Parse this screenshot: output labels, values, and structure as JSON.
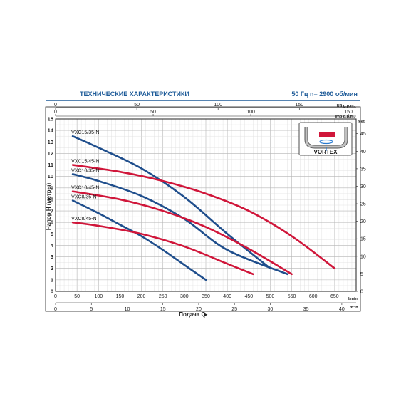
{
  "header": {
    "title": "ТЕХНИЧЕСКИЕ ХАРАКТЕРИСТИКИ",
    "spec": "50 Гц   n= 2900 об/мин"
  },
  "inset": {
    "label": "VORTEX"
  },
  "colors": {
    "title": "#1f5c99",
    "blue_series": "#1f4e8c",
    "red_series": "#d0163a",
    "grid": "#c8c8c8",
    "frame": "#222222"
  },
  "chart_data": {
    "type": "line",
    "xlabel": "Подача Q",
    "ylabel": "Напор H (метры)",
    "x_unit_bottom": "l/min",
    "x_unit_lower": "m³/h",
    "x_unit_top1": "US g.p.m.",
    "x_unit_top2": "Imp g.p.m.",
    "y_unit_right": "feet",
    "xlim": [
      0,
      700
    ],
    "ylim": [
      0,
      15
    ],
    "grid": true,
    "x_ticks_lmin": [
      "0",
      "50",
      "100",
      "150",
      "200",
      "250",
      "300",
      "350",
      "400",
      "450",
      "500",
      "550",
      "600",
      "650"
    ],
    "x_ticks_m3h": [
      "0",
      "5",
      "10",
      "15",
      "20",
      "25",
      "30",
      "35",
      "40"
    ],
    "x_ticks_usgpm": [
      "0",
      "50",
      "100",
      "150"
    ],
    "x_ticks_impgpm": [
      "0",
      "50",
      "100",
      "150"
    ],
    "y_ticks": [
      "0",
      "1",
      "2",
      "3",
      "4",
      "5",
      "6",
      "7",
      "8",
      "9",
      "10",
      "11",
      "12",
      "13",
      "14",
      "15"
    ],
    "y_ticks_feet": [
      "0",
      "5",
      "10",
      "15",
      "20",
      "25",
      "30",
      "35",
      "40",
      "45"
    ],
    "series": [
      {
        "name": "VXC15/35-N",
        "color": "blue",
        "x": [
          40,
          100,
          200,
          300,
          400,
          500
        ],
        "y": [
          13.5,
          12.5,
          10.7,
          8.2,
          5.0,
          2.0
        ]
      },
      {
        "name": "VXC15/45-N",
        "color": "red",
        "x": [
          40,
          150,
          250,
          350,
          450,
          550,
          650
        ],
        "y": [
          11.0,
          10.4,
          9.6,
          8.5,
          7.0,
          4.8,
          2.0
        ]
      },
      {
        "name": "VXC10/35-N",
        "color": "blue",
        "x": [
          40,
          100,
          200,
          300,
          400,
          540
        ],
        "y": [
          10.2,
          9.6,
          8.3,
          6.3,
          3.6,
          1.5
        ]
      },
      {
        "name": "VXC10/45-N",
        "color": "red",
        "x": [
          40,
          150,
          250,
          350,
          450,
          550
        ],
        "y": [
          8.7,
          8.0,
          7.0,
          5.6,
          3.7,
          1.5
        ]
      },
      {
        "name": "VXC8/35-N",
        "color": "blue",
        "x": [
          40,
          100,
          150,
          200,
          250,
          300,
          350
        ],
        "y": [
          7.9,
          6.8,
          5.8,
          4.8,
          3.6,
          2.3,
          1.0
        ]
      },
      {
        "name": "VXC8/45-N",
        "color": "red",
        "x": [
          40,
          100,
          200,
          300,
          400,
          460
        ],
        "y": [
          6.0,
          5.7,
          5.0,
          3.9,
          2.4,
          1.5
        ]
      }
    ]
  }
}
